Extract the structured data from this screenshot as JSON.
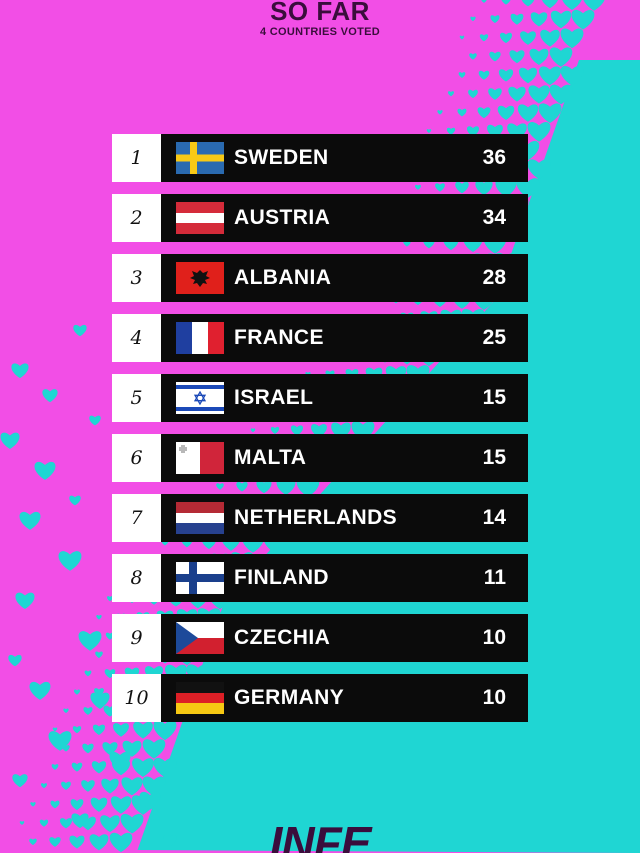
{
  "header": {
    "title": "SO FAR",
    "subtitle": "4 COUNTRIES VOTED"
  },
  "colors": {
    "background": "#f24ee6",
    "hearts": "#1fd6d3",
    "bar": "#0b0b0b",
    "rank_box": "#ffffff"
  },
  "scoreboard": [
    {
      "rank": "1",
      "country": "SWEDEN",
      "points": "36",
      "flag": "sweden-flag-icon"
    },
    {
      "rank": "2",
      "country": "AUSTRIA",
      "points": "34",
      "flag": "austria-flag-icon"
    },
    {
      "rank": "3",
      "country": "ALBANIA",
      "points": "28",
      "flag": "albania-flag-icon"
    },
    {
      "rank": "4",
      "country": "FRANCE",
      "points": "25",
      "flag": "france-flag-icon"
    },
    {
      "rank": "5",
      "country": "ISRAEL",
      "points": "15",
      "flag": "israel-flag-icon"
    },
    {
      "rank": "6",
      "country": "MALTA",
      "points": "15",
      "flag": "malta-flag-icon"
    },
    {
      "rank": "7",
      "country": "NETHERLANDS",
      "points": "14",
      "flag": "netherlands-flag-icon"
    },
    {
      "rank": "8",
      "country": "FINLAND",
      "points": "11",
      "flag": "finland-flag-icon"
    },
    {
      "rank": "9",
      "country": "CZECHIA",
      "points": "10",
      "flag": "czechia-flag-icon"
    },
    {
      "rank": "10",
      "country": "GERMANY",
      "points": "10",
      "flag": "germany-flag-icon"
    }
  ],
  "footer": {
    "logo": "INFE"
  }
}
